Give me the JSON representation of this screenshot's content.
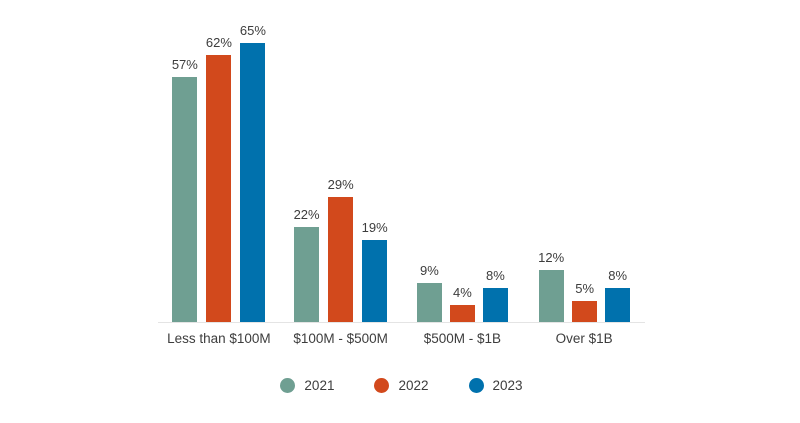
{
  "chart_data": {
    "type": "bar",
    "categories": [
      "Less than $100M",
      "$100M - $500M",
      "$500M - $1B",
      "Over $1B"
    ],
    "series": [
      {
        "name": "2021",
        "color": "#6F9F92",
        "values": [
          57,
          22,
          9,
          12
        ]
      },
      {
        "name": "2022",
        "color": "#D2491C",
        "values": [
          62,
          29,
          4,
          5
        ]
      },
      {
        "name": "2023",
        "color": "#0071AD",
        "values": [
          65,
          19,
          8,
          8
        ]
      }
    ],
    "value_suffix": "%",
    "data_labels": [
      "57%",
      "62%",
      "65%",
      "22%",
      "29%",
      "19%",
      "9%",
      "4%",
      "8%",
      "12%",
      "5%",
      "8%"
    ],
    "title": "",
    "xlabel": "",
    "ylabel": "",
    "ylim": [
      0,
      70
    ],
    "grid": false,
    "axis_line_color": "#E4E4E4",
    "label_color": "#3D3D3D",
    "background_color": "#FFFFFF",
    "legend_position": "bottom",
    "legend_labels": [
      "2021",
      "2022",
      "2023"
    ]
  }
}
